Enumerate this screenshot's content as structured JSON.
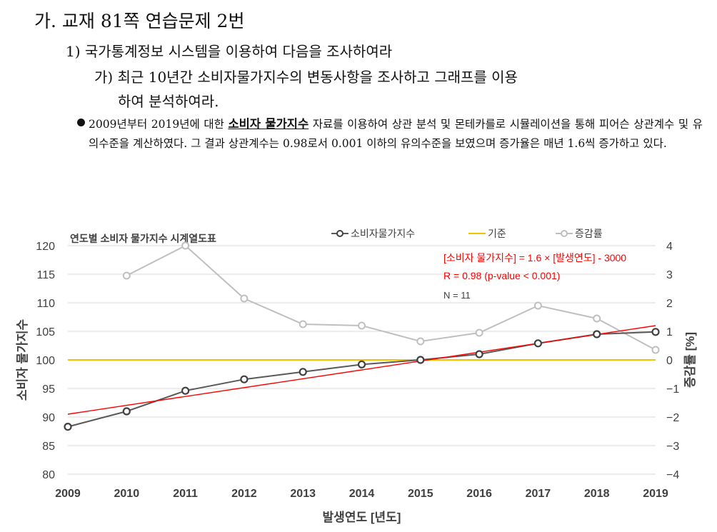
{
  "doc": {
    "heading1": "가. 교재 81쪽 연습문제 2번",
    "heading2": "1) 국가통계정보 시스템을 이용하여 다음을 조사하여라",
    "heading3_line1": "가) 최근 10년간 소비자물가지수의 변동사항을 조사하고 그래프를 이용",
    "heading3_line2": "하여 분석하여라.",
    "bullet_pre": "2009년부터 2019년에 대한 ",
    "bullet_emph": "소비자 물가지수",
    "bullet_post": " 자료를 이용하여 상관 분석 및 몬테카를로 시뮬레이션을 통해 피어슨 상관계수 및 유의수준을 계산하였다. 그 결과 상관계수는 0.98로서 0.001 이하의 유의수준을 보였으며 증가율은 매년 1.6씩 증가하고 있다."
  },
  "chart_data": {
    "type": "line",
    "title": "연도별 소비자 물가지수 시계열도표",
    "xlabel": "발생연도 [년도]",
    "ylabel": "소비자 물가지수",
    "y2label": "증감률 [%]",
    "x": [
      2009,
      2010,
      2011,
      2012,
      2013,
      2014,
      2015,
      2016,
      2017,
      2018,
      2019
    ],
    "xlim": [
      2009,
      2019
    ],
    "ylim": [
      80,
      120
    ],
    "y2lim": [
      -4,
      4
    ],
    "y_ticks": [
      80,
      85,
      90,
      95,
      100,
      105,
      110,
      115,
      120
    ],
    "y2_ticks": [
      "−4",
      "−3",
      "−2",
      "−1",
      "0",
      "1",
      "2",
      "3",
      "4"
    ],
    "series": [
      {
        "name": "소비자물가지수",
        "axis": "left",
        "color": "#595959",
        "values": [
          88.3,
          91.0,
          94.6,
          96.6,
          97.9,
          99.2,
          100.0,
          101.0,
          102.9,
          104.5,
          104.9
        ]
      },
      {
        "name": "기준",
        "axis": "left",
        "color": "#f2c100",
        "values": [
          100,
          100,
          100,
          100,
          100,
          100,
          100,
          100,
          100,
          100,
          100
        ]
      },
      {
        "name": "증감률",
        "axis": "right",
        "color": "#bfbfbf",
        "values": [
          null,
          2.95,
          4.0,
          2.15,
          1.25,
          1.2,
          0.65,
          0.95,
          1.9,
          1.45,
          0.35
        ]
      }
    ],
    "trendline": {
      "slope": 1.6,
      "intercept": -3000,
      "from": [
        2009,
        90.5
      ],
      "to": [
        2019,
        106.0
      ],
      "color": "#ff0000"
    },
    "annotations": {
      "equation": "[소비자 물가지수] = 1.6 × [발생연도] - 3000",
      "r": "R = 0.98 (p-value < 0.001)",
      "n": "N = 11"
    },
    "legend_position": "top",
    "grid": "horizontal"
  }
}
